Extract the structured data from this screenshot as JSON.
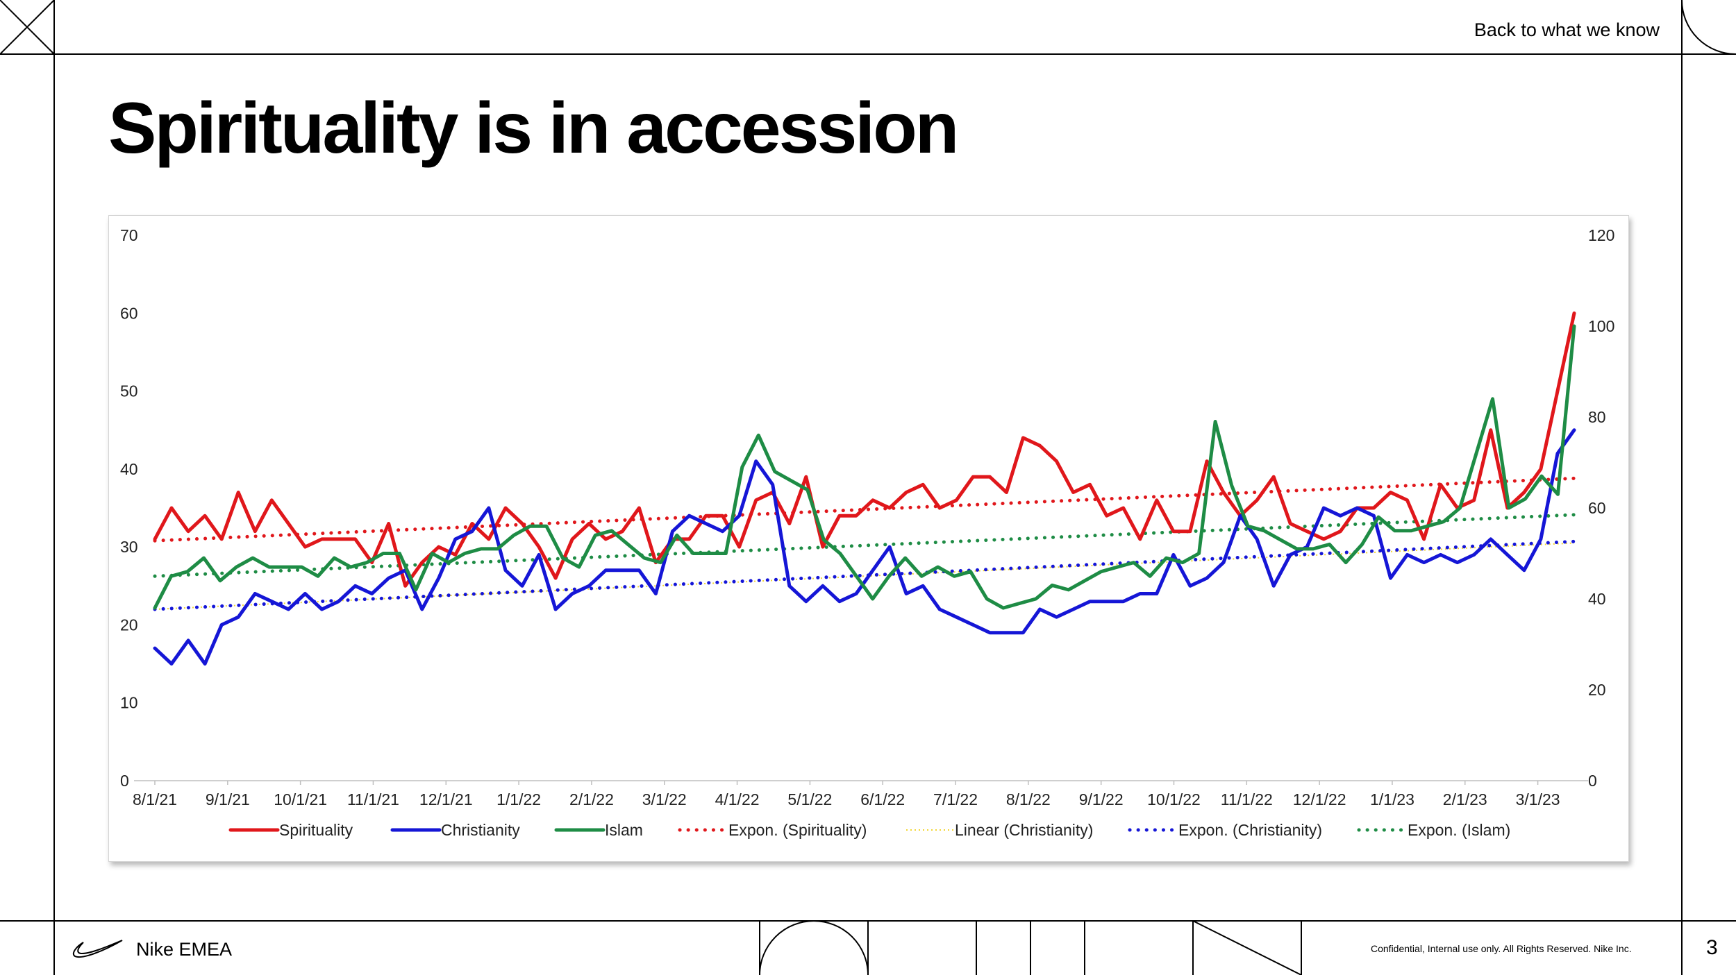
{
  "header": {
    "title": "Spirituality is in accession",
    "top_link": "Back to what we know"
  },
  "footer": {
    "brand": "Nike EMEA",
    "legal": "Confidential, Internal use only. All Rights Reserved. Nike Inc.",
    "page_number": "3"
  },
  "icons": {
    "logo": "swoosh-icon"
  },
  "chart_data": {
    "type": "line",
    "title": "",
    "x_tick_labels": [
      "8/1/21",
      "9/1/21",
      "10/1/21",
      "11/1/21",
      "12/1/21",
      "1/1/22",
      "2/1/22",
      "3/1/22",
      "4/1/22",
      "5/1/22",
      "6/1/22",
      "7/1/22",
      "8/1/22",
      "9/1/22",
      "10/1/22",
      "11/1/22",
      "12/1/22",
      "1/1/23",
      "2/1/23",
      "3/1/23"
    ],
    "y_left": {
      "lim": [
        0,
        70
      ],
      "ticks": [
        "0",
        "10",
        "20",
        "30",
        "40",
        "50",
        "60",
        "70"
      ]
    },
    "y_right": {
      "lim": [
        0,
        120
      ],
      "ticks": [
        "0",
        "20",
        "40",
        "60",
        "80",
        "100",
        "120"
      ]
    },
    "grid": false,
    "legend_position": "bottom",
    "series": [
      {
        "name": "Spirituality",
        "axis": "left",
        "color": "#e0171b",
        "style": "solid",
        "values": [
          31,
          35,
          32,
          34,
          31,
          37,
          32,
          36,
          33,
          30,
          31,
          31,
          31,
          28,
          33,
          25,
          28,
          30,
          29,
          33,
          31,
          35,
          33,
          30,
          26,
          31,
          33,
          31,
          32,
          35,
          28,
          31,
          31,
          34,
          34,
          30,
          36,
          37,
          33,
          39,
          30,
          34,
          34,
          36,
          35,
          37,
          38,
          35,
          36,
          39,
          39,
          37,
          44,
          43,
          41,
          37,
          38,
          34,
          35,
          31,
          36,
          32,
          32,
          41,
          37,
          34,
          36,
          39,
          33,
          32,
          31,
          32,
          35,
          35,
          37,
          36,
          31,
          38,
          35,
          36,
          45,
          35,
          37,
          40,
          50,
          60
        ]
      },
      {
        "name": "Christianity",
        "axis": "left",
        "color": "#1516d6",
        "style": "solid",
        "values": [
          17,
          15,
          18,
          15,
          20,
          21,
          24,
          23,
          22,
          24,
          22,
          23,
          25,
          24,
          26,
          27,
          22,
          26,
          31,
          32,
          35,
          27,
          25,
          29,
          22,
          24,
          25,
          27,
          27,
          27,
          24,
          32,
          34,
          33,
          32,
          34,
          41,
          38,
          25,
          23,
          25,
          23,
          24,
          27,
          30,
          24,
          25,
          22,
          21,
          20,
          19,
          19,
          19,
          22,
          21,
          22,
          23,
          23,
          23,
          24,
          24,
          29,
          25,
          26,
          28,
          34,
          31,
          25,
          29,
          30,
          35,
          34,
          35,
          34,
          26,
          29,
          28,
          29,
          28,
          29,
          31,
          29,
          27,
          31,
          42,
          45
        ]
      },
      {
        "name": "Islam",
        "axis": "right",
        "color": "#1e8c45",
        "style": "solid",
        "values": [
          38,
          45,
          46,
          49,
          44,
          47,
          49,
          47,
          47,
          47,
          45,
          49,
          47,
          48,
          50,
          50,
          42,
          50,
          48,
          50,
          51,
          51,
          54,
          56,
          56,
          49,
          47,
          54,
          55,
          52,
          49,
          48,
          54,
          50,
          50,
          50,
          69,
          76,
          68,
          66,
          64,
          53,
          50,
          45,
          40,
          45,
          49,
          45,
          47,
          45,
          46,
          40,
          38,
          39,
          40,
          43,
          42,
          44,
          46,
          47,
          48,
          45,
          49,
          48,
          50,
          79,
          65,
          56,
          55,
          53,
          51,
          51,
          52,
          48,
          52,
          58,
          55,
          55,
          56,
          57,
          60,
          72,
          84,
          60,
          62,
          67,
          63,
          100
        ]
      },
      {
        "name": "Expon. (Spirituality)",
        "axis": "left",
        "color": "#e0171b",
        "style": "dotted",
        "values": [
          30.8,
          38.8
        ]
      },
      {
        "name": "Linear (Christianity)",
        "axis": "left",
        "color": "#f2d633",
        "style": "dotted",
        "values": [
          22.0,
          30.5
        ]
      },
      {
        "name": "Expon. (Christianity)",
        "axis": "left",
        "color": "#1516d6",
        "style": "dotted",
        "values": [
          22.0,
          30.7
        ]
      },
      {
        "name": "Expon. (Islam)",
        "axis": "right",
        "color": "#1e8c45",
        "style": "dotted",
        "values": [
          45.0,
          58.5
        ]
      }
    ]
  }
}
